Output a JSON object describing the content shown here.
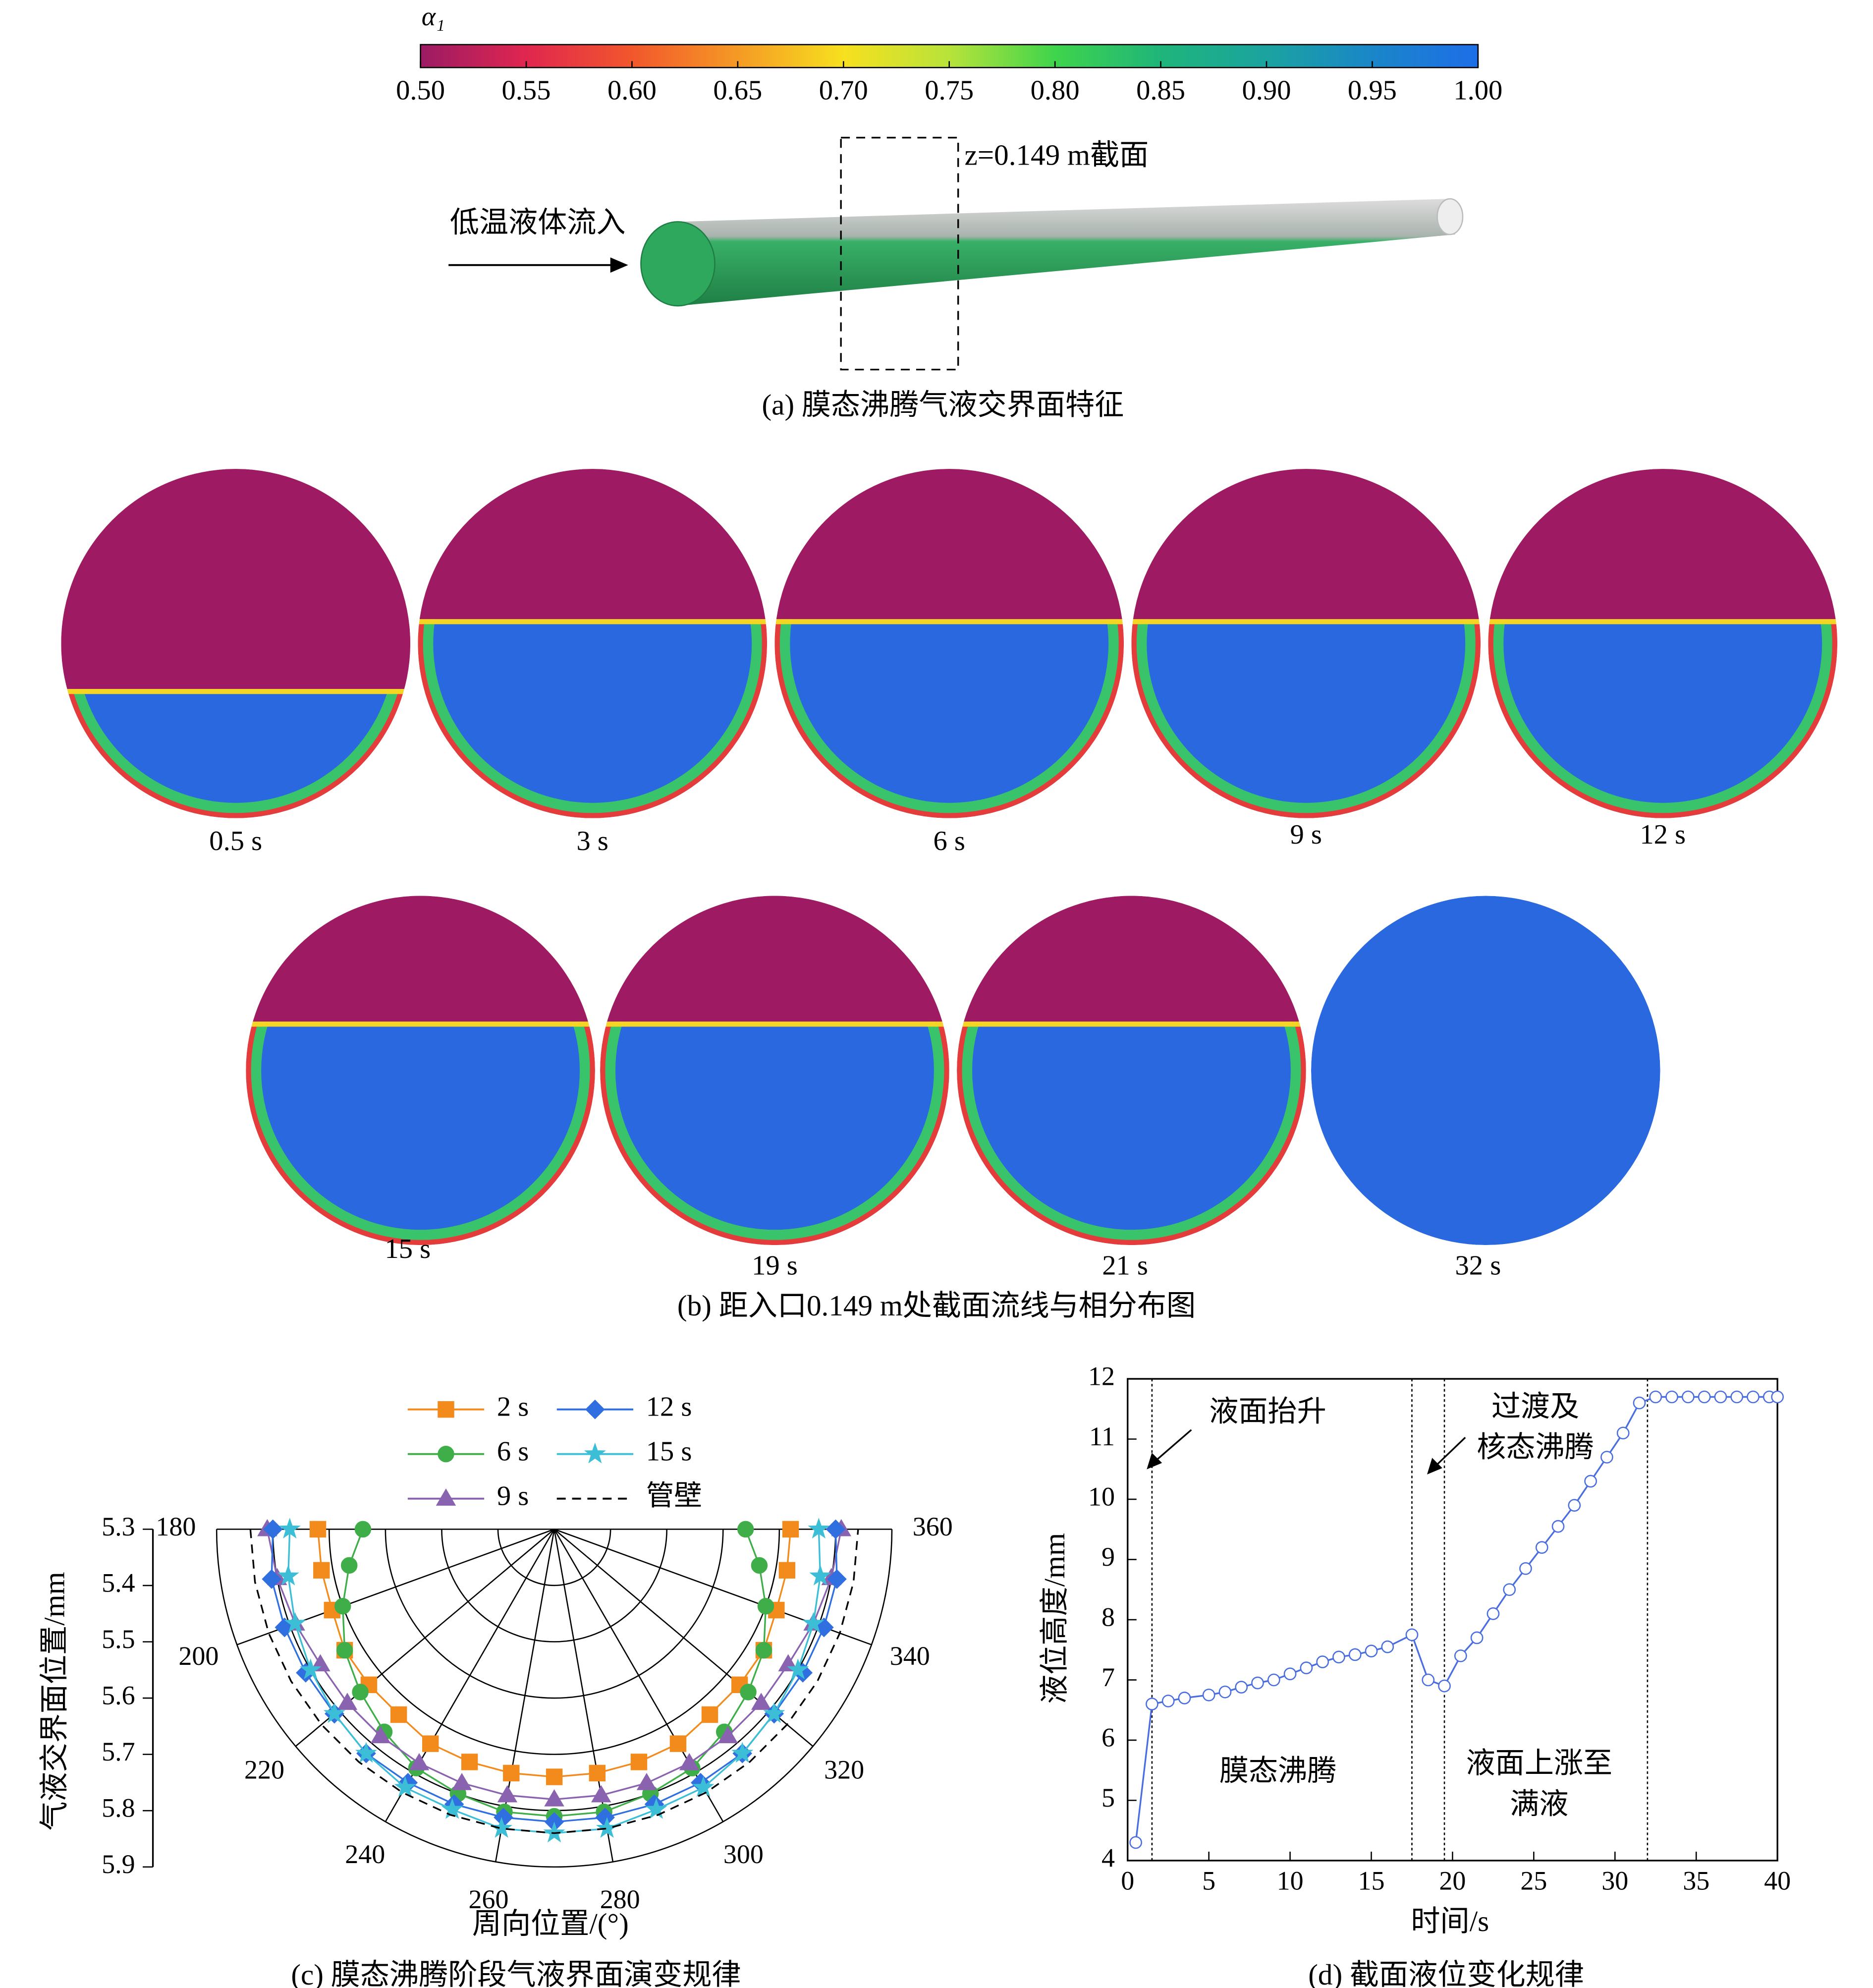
{
  "panel_a": {
    "colorbar": {
      "label": "α₁",
      "lim": [
        0.5,
        1.0
      ],
      "colormap": [
        "#9b1b64",
        "#e0264f",
        "#f2572c",
        "#f59a25",
        "#f7e01f",
        "#b8e33a",
        "#3fd44c",
        "#1fb57a",
        "#1ba3a0",
        "#1a86c8",
        "#1e6ee8"
      ],
      "ticks": [
        {
          "value": 0.5,
          "label": "0.50"
        },
        {
          "value": 0.55,
          "label": "0.55"
        },
        {
          "value": 0.6,
          "label": "0.60"
        },
        {
          "value": 0.65,
          "label": "0.65"
        },
        {
          "value": 0.7,
          "label": "0.70"
        },
        {
          "value": 0.75,
          "label": "0.75"
        },
        {
          "value": 0.8,
          "label": "0.80"
        },
        {
          "value": 0.85,
          "label": "0.85"
        },
        {
          "value": 0.9,
          "label": "0.90"
        },
        {
          "value": 0.95,
          "label": "0.95"
        },
        {
          "value": 1.0,
          "label": "1.00"
        }
      ]
    },
    "section_label": "z=0.149 m截面",
    "inlet_label": "低温液体流入",
    "caption": "(a) 膜态沸腾气液交界面特征"
  },
  "panel_b": {
    "times": [
      "0.5 s",
      "3 s",
      "6 s",
      "9 s",
      "12 s",
      "15 s",
      "19 s",
      "21 s",
      "32 s"
    ],
    "caption": "(b) 距入口0.149  m处截面流线与相分布图"
  },
  "chart_data": [
    {
      "type": "polar",
      "xlabel": "周向位置/(°)",
      "ylabel": "气液交界面位置/mm",
      "caption": "(c) 膜态沸腾阶段气液界面演变规律",
      "x": [
        180,
        190,
        200,
        210,
        220,
        230,
        240,
        250,
        260,
        270,
        280,
        290,
        300,
        310,
        320,
        330,
        340,
        350,
        360
      ],
      "xlim": [
        180,
        360
      ],
      "xticks": [
        180,
        200,
        220,
        240,
        260,
        280,
        300,
        320,
        340,
        360
      ],
      "ylim": [
        5.3,
        5.9
      ],
      "yticks": [
        5.3,
        5.4,
        5.5,
        5.6,
        5.7,
        5.8,
        5.9
      ],
      "series": [
        {
          "name": "2 s",
          "color": "#f28a1c",
          "marker": "square",
          "values": [
            5.72,
            5.72,
            5.72,
            5.73,
            5.73,
            5.73,
            5.74,
            5.74,
            5.74,
            5.74,
            5.74,
            5.74,
            5.74,
            5.73,
            5.73,
            5.73,
            5.72,
            5.72,
            5.72
          ]
        },
        {
          "name": "6 s",
          "color": "#3fae49",
          "marker": "circle",
          "values": [
            5.64,
            5.67,
            5.7,
            5.73,
            5.75,
            5.77,
            5.79,
            5.8,
            5.81,
            5.81,
            5.81,
            5.8,
            5.79,
            5.77,
            5.75,
            5.73,
            5.7,
            5.67,
            5.64
          ]
        },
        {
          "name": "9 s",
          "color": "#8a63b0",
          "marker": "triangle",
          "values": [
            5.81,
            5.8,
            5.79,
            5.78,
            5.78,
            5.78,
            5.78,
            5.78,
            5.78,
            5.78,
            5.78,
            5.78,
            5.78,
            5.78,
            5.78,
            5.78,
            5.79,
            5.8,
            5.81
          ]
        },
        {
          "name": "12 s",
          "color": "#2f6fe0",
          "marker": "diamond",
          "values": [
            5.8,
            5.81,
            5.81,
            5.81,
            5.81,
            5.82,
            5.82,
            5.82,
            5.82,
            5.82,
            5.82,
            5.82,
            5.82,
            5.82,
            5.81,
            5.81,
            5.81,
            5.81,
            5.8
          ]
        },
        {
          "name": "15 s",
          "color": "#3cbfd6",
          "marker": "star",
          "values": [
            5.77,
            5.78,
            5.79,
            5.8,
            5.81,
            5.82,
            5.83,
            5.83,
            5.84,
            5.84,
            5.84,
            5.83,
            5.83,
            5.82,
            5.81,
            5.8,
            5.79,
            5.78,
            5.77
          ]
        },
        {
          "name": "管壁",
          "color": "#000000",
          "marker": "none",
          "dashed": true,
          "values": [
            5.84,
            5.84,
            5.84,
            5.84,
            5.84,
            5.84,
            5.84,
            5.84,
            5.84,
            5.84,
            5.84,
            5.84,
            5.84,
            5.84,
            5.84,
            5.84,
            5.84,
            5.84,
            5.84
          ]
        }
      ]
    },
    {
      "type": "line",
      "xlabel": "时间/s",
      "ylabel": "液位高度/mm",
      "caption": "(d) 截面液位变化规律",
      "x": [
        0.5,
        1.5,
        2.5,
        3.5,
        5,
        6,
        7,
        8,
        9,
        10,
        11,
        12,
        13,
        14,
        15,
        16,
        17.5,
        18.5,
        19.5,
        20.5,
        21.5,
        22.5,
        23.5,
        24.5,
        25.5,
        26.5,
        27.5,
        28.5,
        29.5,
        30.5,
        31.5,
        32.5,
        33.5,
        34.5,
        35.5,
        36.5,
        37.5,
        38.5,
        39.5,
        40
      ],
      "series": [
        {
          "name": "液位",
          "color": "#4a6ee0",
          "values": [
            4.3,
            6.6,
            6.65,
            6.7,
            6.75,
            6.8,
            6.88,
            6.95,
            7.0,
            7.1,
            7.2,
            7.3,
            7.38,
            7.42,
            7.48,
            7.55,
            7.75,
            7.0,
            6.9,
            7.4,
            7.7,
            8.1,
            8.5,
            8.85,
            9.2,
            9.55,
            9.9,
            10.3,
            10.7,
            11.1,
            11.6,
            11.7,
            11.7,
            11.7,
            11.7,
            11.7,
            11.7,
            11.7,
            11.7,
            11.7
          ]
        }
      ],
      "xlim": [
        0,
        40
      ],
      "xticks": [
        0,
        5,
        10,
        15,
        20,
        25,
        30,
        35,
        40
      ],
      "ylim": [
        4,
        12
      ],
      "yticks": [
        4,
        5,
        6,
        7,
        8,
        9,
        10,
        11,
        12
      ],
      "vlines": [
        1.5,
        17.5,
        19.5,
        32
      ],
      "annotations": [
        {
          "lines": [
            "液面抬升"
          ]
        },
        {
          "lines": [
            "过渡及",
            "核态沸腾"
          ]
        },
        {
          "lines": [
            "膜态沸腾"
          ]
        },
        {
          "lines": [
            "液面上涨至",
            "满液"
          ]
        }
      ]
    }
  ]
}
